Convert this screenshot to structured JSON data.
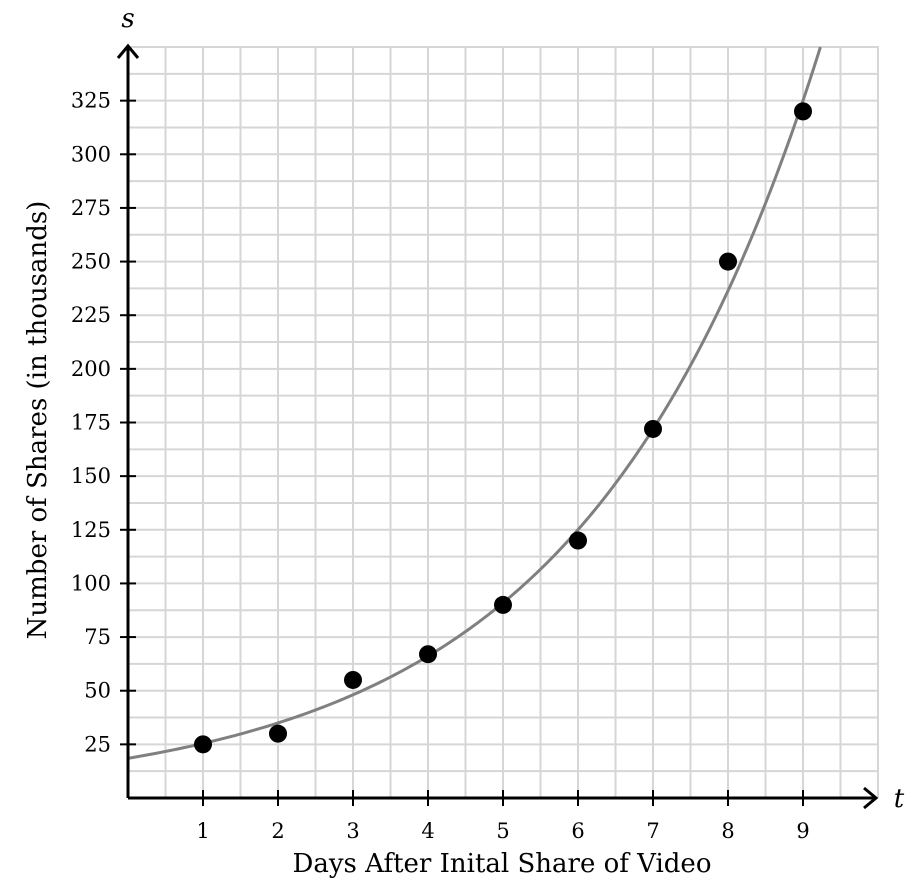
{
  "chart_data": {
    "type": "scatter",
    "xlabel": "Days After Inital Share of Video",
    "ylabel": "Number of Shares (in thousands)",
    "x_var": "t",
    "y_var": "s",
    "xlim": [
      0,
      10
    ],
    "ylim": [
      0,
      350
    ],
    "x_ticks": [
      1,
      2,
      3,
      4,
      5,
      6,
      7,
      8,
      9
    ],
    "y_ticks": [
      25,
      50,
      75,
      100,
      125,
      150,
      175,
      200,
      225,
      250,
      275,
      300,
      325
    ],
    "grid": true,
    "points": [
      {
        "x": 1,
        "y": 25
      },
      {
        "x": 2,
        "y": 30
      },
      {
        "x": 3,
        "y": 55
      },
      {
        "x": 4,
        "y": 67
      },
      {
        "x": 5,
        "y": 90
      },
      {
        "x": 6,
        "y": 120
      },
      {
        "x": 7,
        "y": 172
      },
      {
        "x": 8,
        "y": 250
      },
      {
        "x": 9,
        "y": 320
      }
    ],
    "trend_curve": {
      "kind": "exponential",
      "a": 18.5,
      "b": 1.375
    },
    "colors": {
      "points": "#000000",
      "curve": "#808080",
      "grid": "#d6d6d6",
      "axis": "#000000"
    }
  }
}
